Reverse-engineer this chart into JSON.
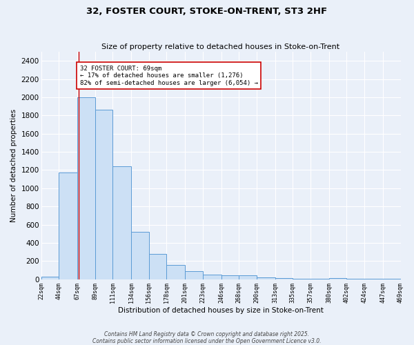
{
  "title": "32, FOSTER COURT, STOKE-ON-TRENT, ST3 2HF",
  "subtitle": "Size of property relative to detached houses in Stoke-on-Trent",
  "xlabel": "Distribution of detached houses by size in Stoke-on-Trent",
  "ylabel": "Number of detached properties",
  "bins": [
    22,
    44,
    67,
    89,
    111,
    134,
    156,
    178,
    201,
    223,
    246,
    268,
    290,
    313,
    335,
    357,
    380,
    402,
    424,
    447,
    469
  ],
  "counts": [
    30,
    1170,
    2000,
    1860,
    1240,
    520,
    275,
    155,
    90,
    50,
    40,
    40,
    20,
    10,
    5,
    5,
    10,
    3,
    2,
    8
  ],
  "bar_color": "#cce0f5",
  "bar_edge_color": "#5b9bd5",
  "background_color": "#eaf0f9",
  "grid_color": "#ffffff",
  "vline_x": 69,
  "vline_color": "#cc0000",
  "annotation_text": "32 FOSTER COURT: 69sqm\n← 17% of detached houses are smaller (1,276)\n82% of semi-detached houses are larger (6,054) →",
  "annotation_box_color": "#ffffff",
  "annotation_box_edge": "#cc0000",
  "ylim": [
    0,
    2500
  ],
  "yticks": [
    0,
    200,
    400,
    600,
    800,
    1000,
    1200,
    1400,
    1600,
    1800,
    2000,
    2200,
    2400
  ],
  "footnote1": "Contains HM Land Registry data © Crown copyright and database right 2025.",
  "footnote2": "Contains public sector information licensed under the Open Government Licence v3.0."
}
